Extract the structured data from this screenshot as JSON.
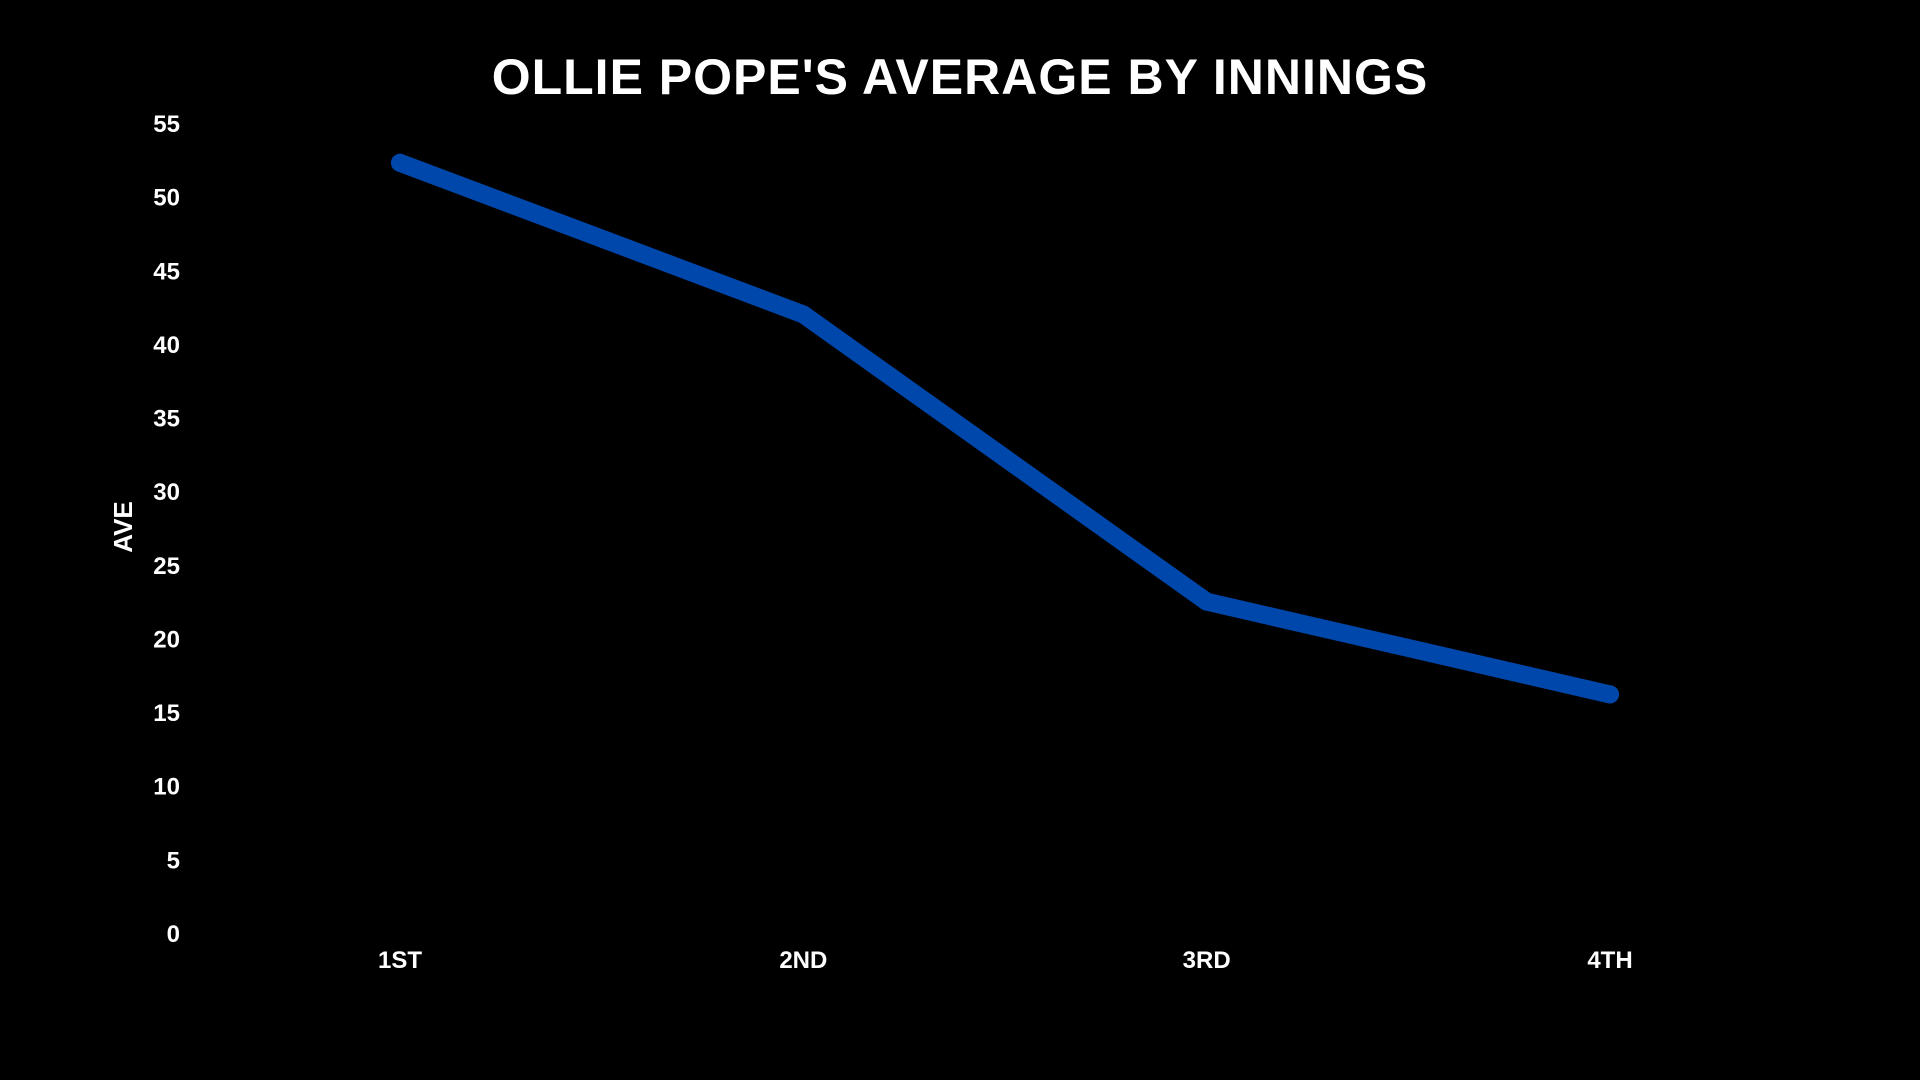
{
  "chart_data": {
    "type": "line",
    "title": "OLLIE POPE'S AVERAGE BY INNINGS",
    "xlabel": "",
    "ylabel": "AVE",
    "categories": [
      "1ST",
      "2ND",
      "3RD",
      "4TH"
    ],
    "series": [
      {
        "values": [
          52.3,
          42.0,
          22.5,
          16.2
        ],
        "color": "#0047AB"
      }
    ],
    "ylim": [
      0,
      55
    ],
    "yticks": [
      0,
      5,
      10,
      15,
      20,
      25,
      30,
      35,
      40,
      45,
      50,
      55
    ],
    "grid": false,
    "legend": "none"
  }
}
